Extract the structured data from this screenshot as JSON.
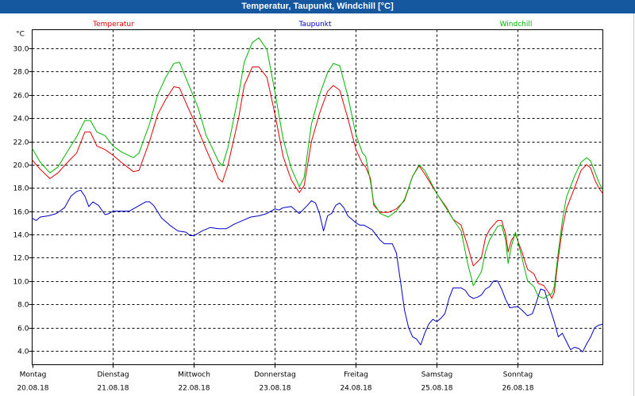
{
  "window": {
    "title": "Temperatur, Taupunkt, Windchill [°C]"
  },
  "chart_data": {
    "type": "line",
    "title": "Temperatur, Taupunkt, Windchill [°C]",
    "ylabel": "°C",
    "ylim": [
      2.8,
      31.6
    ],
    "xlim": [
      0,
      7.05
    ],
    "grid": true,
    "legend": "top",
    "yticks": [
      4,
      6,
      8,
      10,
      12,
      14,
      16,
      18,
      20,
      22,
      24,
      26,
      28,
      30
    ],
    "ytick_labels": [
      "4.0",
      "6.0",
      "8.0",
      "10.0",
      "12.0",
      "14.0",
      "16.0",
      "18.0",
      "20.0",
      "22.0",
      "24.0",
      "26.0",
      "28.0",
      "30.0"
    ],
    "days": [
      {
        "day": "Montag",
        "date": "20.08.18",
        "x": 0
      },
      {
        "day": "Dienstag",
        "date": "21.08.18",
        "x": 1
      },
      {
        "day": "Mittwoch",
        "date": "22.08.18",
        "x": 2
      },
      {
        "day": "Donnerstag",
        "date": "23.08.18",
        "x": 3
      },
      {
        "day": "Freitag",
        "date": "24.08.18",
        "x": 4
      },
      {
        "day": "Samstag",
        "date": "25.08.18",
        "x": 5
      },
      {
        "day": "Sonntag",
        "date": "26.08.18",
        "x": 6
      }
    ],
    "series": [
      {
        "name": "Temperatur",
        "color": "#e00000",
        "points": [
          [
            0,
            20.4
          ],
          [
            0.1,
            19.6
          ],
          [
            0.22,
            18.8
          ],
          [
            0.32,
            19.3
          ],
          [
            0.45,
            20.3
          ],
          [
            0.55,
            21
          ],
          [
            0.65,
            22.8
          ],
          [
            0.72,
            22.8
          ],
          [
            0.8,
            21.6
          ],
          [
            0.9,
            21.3
          ],
          [
            1,
            20.8
          ],
          [
            1.1,
            20.2
          ],
          [
            1.25,
            19.4
          ],
          [
            1.32,
            19.5
          ],
          [
            1.45,
            22
          ],
          [
            1.55,
            24.3
          ],
          [
            1.65,
            25.6
          ],
          [
            1.75,
            26.7
          ],
          [
            1.82,
            26.6
          ],
          [
            1.92,
            25
          ],
          [
            2.05,
            23
          ],
          [
            2.15,
            21.3
          ],
          [
            2.22,
            20.2
          ],
          [
            2.3,
            18.8
          ],
          [
            2.35,
            18.5
          ],
          [
            2.42,
            20
          ],
          [
            2.55,
            24
          ],
          [
            2.62,
            26.8
          ],
          [
            2.72,
            28.4
          ],
          [
            2.8,
            28.4
          ],
          [
            2.9,
            27.5
          ],
          [
            3,
            24.3
          ],
          [
            3.1,
            20.7
          ],
          [
            3.2,
            18.7
          ],
          [
            3.3,
            17.6
          ],
          [
            3.36,
            18.2
          ],
          [
            3.45,
            22
          ],
          [
            3.55,
            24.4
          ],
          [
            3.65,
            26.3
          ],
          [
            3.72,
            26.8
          ],
          [
            3.8,
            26.4
          ],
          [
            3.9,
            24
          ],
          [
            4,
            21.3
          ],
          [
            4.08,
            20.1
          ],
          [
            4.12,
            19.8
          ],
          [
            4.18,
            18.8
          ],
          [
            4.22,
            16.5
          ],
          [
            4.3,
            15.9
          ],
          [
            4.4,
            15.9
          ],
          [
            4.5,
            16.2
          ],
          [
            4.6,
            16.9
          ],
          [
            4.7,
            19
          ],
          [
            4.78,
            19.9
          ],
          [
            4.85,
            19.2
          ],
          [
            5,
            17.5
          ],
          [
            5.12,
            16.3
          ],
          [
            5.2,
            15.3
          ],
          [
            5.3,
            14.8
          ],
          [
            5.38,
            13
          ],
          [
            5.45,
            11.3
          ],
          [
            5.55,
            12
          ],
          [
            5.6,
            13.7
          ],
          [
            5.65,
            14.4
          ],
          [
            5.75,
            15.2
          ],
          [
            5.8,
            15.2
          ],
          [
            5.85,
            14
          ],
          [
            5.88,
            12.5
          ],
          [
            5.92,
            13.5
          ],
          [
            5.97,
            14
          ],
          [
            6.05,
            12.5
          ],
          [
            6.12,
            11
          ],
          [
            6.2,
            10.6
          ],
          [
            6.25,
            9.8
          ],
          [
            6.32,
            9.6
          ],
          [
            6.38,
            9
          ],
          [
            6.42,
            8.5
          ],
          [
            6.45,
            9
          ],
          [
            6.5,
            12
          ],
          [
            6.55,
            14.5
          ],
          [
            6.6,
            16.2
          ],
          [
            6.7,
            18
          ],
          [
            6.78,
            19.5
          ],
          [
            6.85,
            20
          ],
          [
            6.9,
            19.7
          ],
          [
            6.95,
            18.7
          ],
          [
            7,
            18
          ],
          [
            7.05,
            17.5
          ]
        ]
      },
      {
        "name": "Taupunkt",
        "color": "#0000c8",
        "points": [
          [
            0,
            15.4
          ],
          [
            0.05,
            15.2
          ],
          [
            0.1,
            15.5
          ],
          [
            0.2,
            15.6
          ],
          [
            0.3,
            15.8
          ],
          [
            0.4,
            16.3
          ],
          [
            0.48,
            17.3
          ],
          [
            0.55,
            17.7
          ],
          [
            0.6,
            17.8
          ],
          [
            0.65,
            17.3
          ],
          [
            0.7,
            16.4
          ],
          [
            0.75,
            16.8
          ],
          [
            0.82,
            16.5
          ],
          [
            0.9,
            15.7
          ],
          [
            0.95,
            15.8
          ],
          [
            1,
            16
          ],
          [
            1.1,
            16
          ],
          [
            1.2,
            16
          ],
          [
            1.3,
            16.4
          ],
          [
            1.4,
            16.8
          ],
          [
            1.45,
            16.8
          ],
          [
            1.5,
            16.5
          ],
          [
            1.6,
            15.4
          ],
          [
            1.7,
            14.8
          ],
          [
            1.8,
            14.3
          ],
          [
            1.9,
            14.2
          ],
          [
            1.95,
            13.9
          ],
          [
            2,
            13.9
          ],
          [
            2.1,
            14.3
          ],
          [
            2.2,
            14.6
          ],
          [
            2.3,
            14.5
          ],
          [
            2.4,
            14.5
          ],
          [
            2.5,
            14.9
          ],
          [
            2.6,
            15.2
          ],
          [
            2.7,
            15.5
          ],
          [
            2.8,
            15.6
          ],
          [
            2.9,
            15.8
          ],
          [
            3,
            16.2
          ],
          [
            3.05,
            16.1
          ],
          [
            3.1,
            16.3
          ],
          [
            3.2,
            16.4
          ],
          [
            3.3,
            15.8
          ],
          [
            3.4,
            16.5
          ],
          [
            3.45,
            16.9
          ],
          [
            3.5,
            16.7
          ],
          [
            3.55,
            15.8
          ],
          [
            3.6,
            14.3
          ],
          [
            3.65,
            15.6
          ],
          [
            3.7,
            15.8
          ],
          [
            3.75,
            16.5
          ],
          [
            3.8,
            16.7
          ],
          [
            3.85,
            16.3
          ],
          [
            3.9,
            15.6
          ],
          [
            4,
            15
          ],
          [
            4.05,
            14.8
          ],
          [
            4.1,
            14.8
          ],
          [
            4.2,
            14.4
          ],
          [
            4.3,
            13.5
          ],
          [
            4.35,
            13.2
          ],
          [
            4.45,
            13.2
          ],
          [
            4.5,
            12.4
          ],
          [
            4.55,
            10
          ],
          [
            4.6,
            7.5
          ],
          [
            4.65,
            6
          ],
          [
            4.7,
            5.2
          ],
          [
            4.75,
            5
          ],
          [
            4.8,
            4.5
          ],
          [
            4.85,
            5.5
          ],
          [
            4.9,
            6.3
          ],
          [
            4.95,
            6.7
          ],
          [
            5,
            6.5
          ],
          [
            5.05,
            6.8
          ],
          [
            5.1,
            7.2
          ],
          [
            5.15,
            8.5
          ],
          [
            5.2,
            9.4
          ],
          [
            5.3,
            9.4
          ],
          [
            5.35,
            9.2
          ],
          [
            5.4,
            8.7
          ],
          [
            5.45,
            8.5
          ],
          [
            5.5,
            8.6
          ],
          [
            5.55,
            8.8
          ],
          [
            5.6,
            9.3
          ],
          [
            5.65,
            9.5
          ],
          [
            5.7,
            10
          ],
          [
            5.75,
            10
          ],
          [
            5.8,
            9.3
          ],
          [
            5.85,
            8.4
          ],
          [
            5.9,
            7.7
          ],
          [
            6,
            7.8
          ],
          [
            6.05,
            7.5
          ],
          [
            6.12,
            7
          ],
          [
            6.18,
            7.2
          ],
          [
            6.23,
            8.2
          ],
          [
            6.28,
            9.3
          ],
          [
            6.33,
            9.2
          ],
          [
            6.38,
            8
          ],
          [
            6.45,
            6.5
          ],
          [
            6.5,
            5.2
          ],
          [
            6.55,
            5.5
          ],
          [
            6.6,
            4.8
          ],
          [
            6.65,
            4.1
          ],
          [
            6.7,
            4.3
          ],
          [
            6.75,
            4.2
          ],
          [
            6.8,
            3.9
          ],
          [
            6.85,
            4.6
          ],
          [
            6.9,
            5.2
          ],
          [
            6.95,
            6
          ],
          [
            7,
            6.2
          ],
          [
            7.05,
            6.3
          ]
        ]
      },
      {
        "name": "Windchill",
        "color": "#00b400",
        "points": [
          [
            0,
            21.4
          ],
          [
            0.1,
            20.2
          ],
          [
            0.22,
            19.3
          ],
          [
            0.32,
            19.8
          ],
          [
            0.45,
            21.3
          ],
          [
            0.55,
            22.4
          ],
          [
            0.65,
            23.8
          ],
          [
            0.72,
            23.8
          ],
          [
            0.8,
            22.8
          ],
          [
            0.9,
            22.5
          ],
          [
            1,
            21.6
          ],
          [
            1.1,
            21.1
          ],
          [
            1.25,
            20.6
          ],
          [
            1.32,
            21
          ],
          [
            1.45,
            23.5
          ],
          [
            1.55,
            26
          ],
          [
            1.65,
            27.5
          ],
          [
            1.75,
            28.7
          ],
          [
            1.82,
            28.8
          ],
          [
            1.92,
            27.1
          ],
          [
            2.05,
            24.9
          ],
          [
            2.15,
            22.5
          ],
          [
            2.22,
            21.5
          ],
          [
            2.3,
            20.3
          ],
          [
            2.35,
            19.9
          ],
          [
            2.42,
            21.5
          ],
          [
            2.55,
            26
          ],
          [
            2.62,
            28.8
          ],
          [
            2.72,
            30.5
          ],
          [
            2.8,
            30.9
          ],
          [
            2.9,
            29.9
          ],
          [
            3,
            26.2
          ],
          [
            3.1,
            22.2
          ],
          [
            3.2,
            19.7
          ],
          [
            3.3,
            18.1
          ],
          [
            3.36,
            18.9
          ],
          [
            3.45,
            23.5
          ],
          [
            3.55,
            26
          ],
          [
            3.65,
            27.9
          ],
          [
            3.72,
            28.7
          ],
          [
            3.8,
            28.5
          ],
          [
            3.9,
            25.9
          ],
          [
            4,
            22.6
          ],
          [
            4.08,
            21
          ],
          [
            4.12,
            20.7
          ],
          [
            4.18,
            18.5
          ],
          [
            4.22,
            16.7
          ],
          [
            4.3,
            15.8
          ],
          [
            4.4,
            15.5
          ],
          [
            4.5,
            16
          ],
          [
            4.6,
            17
          ],
          [
            4.7,
            19
          ],
          [
            4.78,
            20
          ],
          [
            4.85,
            19.5
          ],
          [
            5,
            17.5
          ],
          [
            5.12,
            16.2
          ],
          [
            5.2,
            15.3
          ],
          [
            5.3,
            14.3
          ],
          [
            5.38,
            11.5
          ],
          [
            5.45,
            9.6
          ],
          [
            5.55,
            10.8
          ],
          [
            5.6,
            12.5
          ],
          [
            5.65,
            13.5
          ],
          [
            5.75,
            14.7
          ],
          [
            5.8,
            14.8
          ],
          [
            5.85,
            13.5
          ],
          [
            5.88,
            11.5
          ],
          [
            5.92,
            13
          ],
          [
            5.97,
            14.2
          ],
          [
            6.05,
            12
          ],
          [
            6.12,
            10
          ],
          [
            6.2,
            9.5
          ],
          [
            6.25,
            8.7
          ],
          [
            6.32,
            8.5
          ],
          [
            6.38,
            8.8
          ],
          [
            6.42,
            8.9
          ],
          [
            6.45,
            9.5
          ],
          [
            6.5,
            12.5
          ],
          [
            6.55,
            15.2
          ],
          [
            6.6,
            17.2
          ],
          [
            6.7,
            19
          ],
          [
            6.78,
            20.2
          ],
          [
            6.85,
            20.6
          ],
          [
            6.9,
            20.3
          ],
          [
            6.95,
            19.4
          ],
          [
            7,
            18.5
          ],
          [
            7.05,
            17.8
          ]
        ]
      }
    ]
  }
}
